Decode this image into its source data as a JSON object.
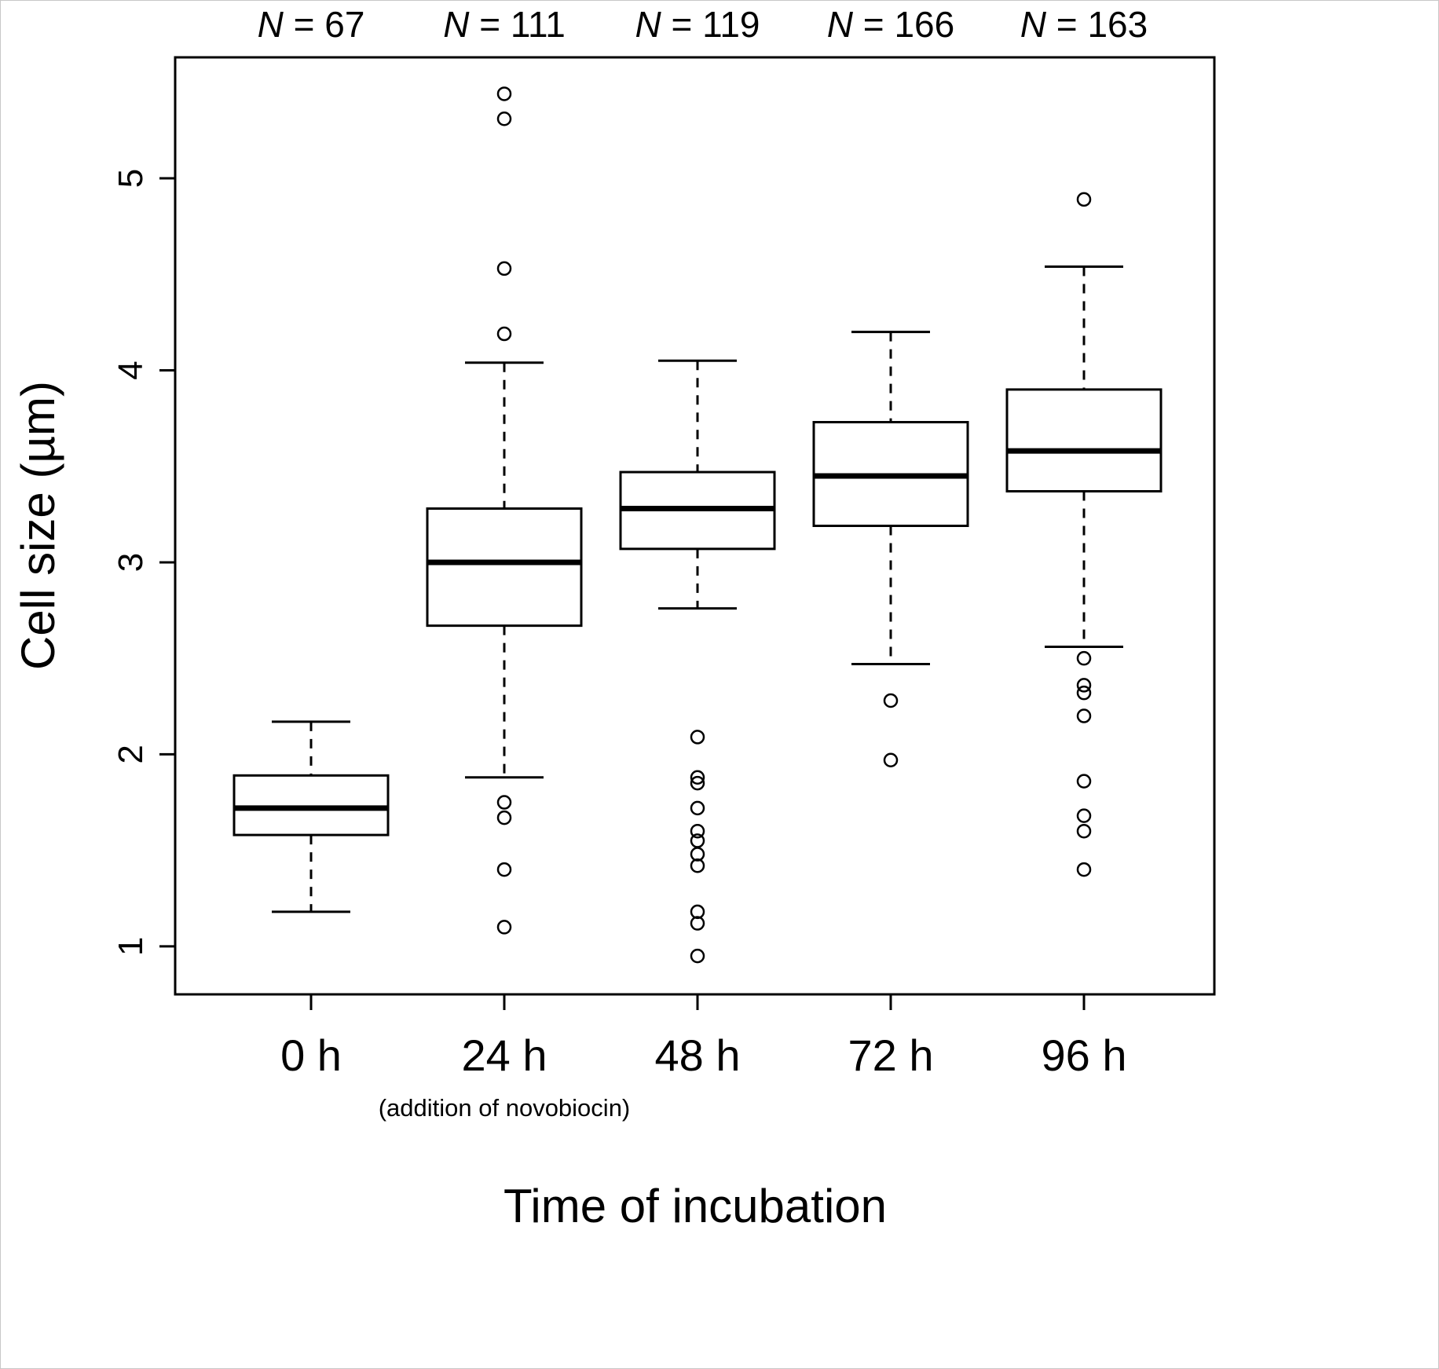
{
  "figure": {
    "background": "#ffffff",
    "ink_color": "#000000"
  },
  "chart_data": {
    "type": "boxplot",
    "title": "",
    "xlabel": "Time of incubation",
    "ylabel": "Cell size (µm)",
    "ylim": [
      0.75,
      5.63
    ],
    "yticks": [
      1,
      2,
      3,
      4,
      5
    ],
    "grid": false,
    "legend": "none",
    "categories": [
      "0 h",
      "24 h",
      "48 h",
      "72 h",
      "96 h"
    ],
    "n_labels": [
      "N = 67",
      "N = 111",
      "N = 119",
      "N = 166",
      "N = 163"
    ],
    "x_sublabel": {
      "under_category": "24 h",
      "text": "(addition of novobiocin)"
    },
    "series": [
      {
        "category": "0 h",
        "n": 67,
        "whisker_low": 1.18,
        "q1": 1.58,
        "median": 1.72,
        "q3": 1.89,
        "whisker_high": 2.17,
        "outliers": []
      },
      {
        "category": "24 h",
        "n": 111,
        "whisker_low": 1.88,
        "q1": 2.67,
        "median": 3.0,
        "q3": 3.28,
        "whisker_high": 4.04,
        "outliers": [
          5.44,
          5.31,
          4.53,
          4.19,
          1.75,
          1.67,
          1.4,
          1.1
        ]
      },
      {
        "category": "48 h",
        "n": 119,
        "whisker_low": 2.76,
        "q1": 3.07,
        "median": 3.28,
        "q3": 3.47,
        "whisker_high": 4.05,
        "outliers": [
          2.09,
          1.88,
          1.85,
          1.72,
          1.6,
          1.55,
          1.48,
          1.42,
          1.18,
          1.12,
          0.95
        ]
      },
      {
        "category": "72 h",
        "n": 166,
        "whisker_low": 2.47,
        "q1": 3.19,
        "median": 3.45,
        "q3": 3.73,
        "whisker_high": 4.2,
        "outliers": [
          2.28,
          1.97
        ]
      },
      {
        "category": "96 h",
        "n": 163,
        "whisker_low": 2.56,
        "q1": 3.37,
        "median": 3.58,
        "q3": 3.9,
        "whisker_high": 4.54,
        "outliers": [
          4.89,
          2.5,
          2.36,
          2.32,
          2.2,
          1.86,
          1.68,
          1.6,
          1.4
        ]
      }
    ]
  }
}
